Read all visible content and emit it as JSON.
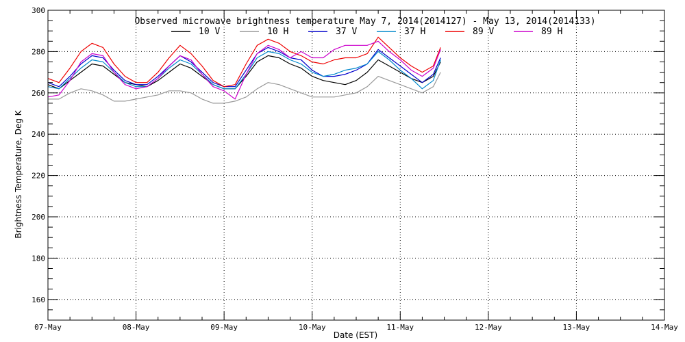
{
  "chart_data": {
    "type": "line",
    "title": "Observed microwave brightness temperature May  7, 2014(2014127) - May 13, 2014(2014133)",
    "xlabel": "Date (EST)",
    "ylabel": "Brightness Temperature, Deg K",
    "xlim": [
      "2014-05-07",
      "2014-05-14"
    ],
    "ylim": [
      150,
      300
    ],
    "x_ticks": [
      "07-May",
      "08-May",
      "09-May",
      "10-May",
      "11-May",
      "12-May",
      "13-May",
      "14-May"
    ],
    "y_ticks": [
      160,
      180,
      200,
      220,
      240,
      260,
      280,
      300
    ],
    "grid": true,
    "legend_position": "top",
    "series": [
      {
        "name": "10 V",
        "color": "#000000",
        "points": [
          [
            "2014-05-07 00:00",
            264
          ],
          [
            "2014-05-07 03:00",
            262
          ],
          [
            "2014-05-07 06:00",
            266
          ],
          [
            "2014-05-07 09:00",
            270
          ],
          [
            "2014-05-07 12:00",
            274
          ],
          [
            "2014-05-07 15:00",
            273
          ],
          [
            "2014-05-07 18:00",
            269
          ],
          [
            "2014-05-07 21:00",
            265
          ],
          [
            "2014-05-08 00:00",
            264
          ],
          [
            "2014-05-08 03:00",
            263
          ],
          [
            "2014-05-08 06:00",
            266
          ],
          [
            "2014-05-08 09:00",
            270
          ],
          [
            "2014-05-08 12:00",
            274
          ],
          [
            "2014-05-08 15:00",
            272
          ],
          [
            "2014-05-08 18:00",
            268
          ],
          [
            "2014-05-08 21:00",
            264
          ],
          [
            "2014-05-09 00:00",
            262
          ],
          [
            "2014-05-09 03:00",
            262
          ],
          [
            "2014-05-09 06:00",
            268
          ],
          [
            "2014-05-09 09:00",
            275
          ],
          [
            "2014-05-09 12:00",
            278
          ],
          [
            "2014-05-09 15:00",
            277
          ],
          [
            "2014-05-09 18:00",
            274
          ],
          [
            "2014-05-09 21:00",
            272
          ],
          [
            "2014-05-10 00:00",
            268
          ],
          [
            "2014-05-10 03:00",
            266
          ],
          [
            "2014-05-10 06:00",
            265
          ],
          [
            "2014-05-10 09:00",
            264
          ],
          [
            "2014-05-10 12:00",
            266
          ],
          [
            "2014-05-10 15:00",
            270
          ],
          [
            "2014-05-10 18:00",
            276
          ],
          [
            "2014-05-10 21:00",
            273
          ],
          [
            "2014-05-11 00:00",
            270
          ],
          [
            "2014-05-11 03:00",
            267
          ],
          [
            "2014-05-11 06:00",
            265
          ],
          [
            "2014-05-11 09:00",
            268
          ],
          [
            "2014-05-11 11:00",
            275
          ]
        ]
      },
      {
        "name": "10 H",
        "color": "#999999",
        "points": [
          [
            "2014-05-07 00:00",
            257
          ],
          [
            "2014-05-07 03:00",
            257
          ],
          [
            "2014-05-07 06:00",
            260
          ],
          [
            "2014-05-07 09:00",
            262
          ],
          [
            "2014-05-07 12:00",
            261
          ],
          [
            "2014-05-07 15:00",
            259
          ],
          [
            "2014-05-07 18:00",
            256
          ],
          [
            "2014-05-07 21:00",
            256
          ],
          [
            "2014-05-08 00:00",
            257
          ],
          [
            "2014-05-08 03:00",
            258
          ],
          [
            "2014-05-08 06:00",
            259
          ],
          [
            "2014-05-08 09:00",
            261
          ],
          [
            "2014-05-08 12:00",
            261
          ],
          [
            "2014-05-08 15:00",
            260
          ],
          [
            "2014-05-08 18:00",
            257
          ],
          [
            "2014-05-08 21:00",
            255
          ],
          [
            "2014-05-09 00:00",
            255
          ],
          [
            "2014-05-09 03:00",
            256
          ],
          [
            "2014-05-09 06:00",
            258
          ],
          [
            "2014-05-09 09:00",
            262
          ],
          [
            "2014-05-09 12:00",
            265
          ],
          [
            "2014-05-09 15:00",
            264
          ],
          [
            "2014-05-09 18:00",
            262
          ],
          [
            "2014-05-09 21:00",
            260
          ],
          [
            "2014-05-10 00:00",
            258
          ],
          [
            "2014-05-10 03:00",
            258
          ],
          [
            "2014-05-10 06:00",
            258
          ],
          [
            "2014-05-10 09:00",
            259
          ],
          [
            "2014-05-10 12:00",
            260
          ],
          [
            "2014-05-10 15:00",
            263
          ],
          [
            "2014-05-10 18:00",
            268
          ],
          [
            "2014-05-10 21:00",
            266
          ],
          [
            "2014-05-11 00:00",
            264
          ],
          [
            "2014-05-11 03:00",
            262
          ],
          [
            "2014-05-11 06:00",
            260
          ],
          [
            "2014-05-11 09:00",
            263
          ],
          [
            "2014-05-11 11:00",
            270
          ]
        ]
      },
      {
        "name": "37 V",
        "color": "#0000cc",
        "points": [
          [
            "2014-05-07 00:00",
            265
          ],
          [
            "2014-05-07 03:00",
            263
          ],
          [
            "2014-05-07 06:00",
            268
          ],
          [
            "2014-05-07 09:00",
            274
          ],
          [
            "2014-05-07 12:00",
            278
          ],
          [
            "2014-05-07 15:00",
            277
          ],
          [
            "2014-05-07 18:00",
            271
          ],
          [
            "2014-05-07 21:00",
            266
          ],
          [
            "2014-05-08 00:00",
            264
          ],
          [
            "2014-05-08 03:00",
            264
          ],
          [
            "2014-05-08 06:00",
            268
          ],
          [
            "2014-05-08 09:00",
            273
          ],
          [
            "2014-05-08 12:00",
            278
          ],
          [
            "2014-05-08 15:00",
            275
          ],
          [
            "2014-05-08 18:00",
            270
          ],
          [
            "2014-05-08 21:00",
            265
          ],
          [
            "2014-05-09 00:00",
            263
          ],
          [
            "2014-05-09 03:00",
            263
          ],
          [
            "2014-05-09 06:00",
            271
          ],
          [
            "2014-05-09 09:00",
            279
          ],
          [
            "2014-05-09 12:00",
            282
          ],
          [
            "2014-05-09 15:00",
            280
          ],
          [
            "2014-05-09 18:00",
            277
          ],
          [
            "2014-05-09 21:00",
            276
          ],
          [
            "2014-05-10 00:00",
            271
          ],
          [
            "2014-05-10 03:00",
            268
          ],
          [
            "2014-05-10 06:00",
            268
          ],
          [
            "2014-05-10 09:00",
            269
          ],
          [
            "2014-05-10 12:00",
            271
          ],
          [
            "2014-05-10 15:00",
            274
          ],
          [
            "2014-05-10 18:00",
            281
          ],
          [
            "2014-05-10 21:00",
            277
          ],
          [
            "2014-05-11 00:00",
            273
          ],
          [
            "2014-05-11 03:00",
            269
          ],
          [
            "2014-05-11 06:00",
            265
          ],
          [
            "2014-05-11 09:00",
            269
          ],
          [
            "2014-05-11 11:00",
            277
          ]
        ]
      },
      {
        "name": "37 H",
        "color": "#0088cc",
        "points": [
          [
            "2014-05-07 00:00",
            263
          ],
          [
            "2014-05-07 03:00",
            262
          ],
          [
            "2014-05-07 06:00",
            267
          ],
          [
            "2014-05-07 09:00",
            272
          ],
          [
            "2014-05-07 12:00",
            276
          ],
          [
            "2014-05-07 15:00",
            275
          ],
          [
            "2014-05-07 18:00",
            270
          ],
          [
            "2014-05-07 21:00",
            265
          ],
          [
            "2014-05-08 00:00",
            263
          ],
          [
            "2014-05-08 03:00",
            263
          ],
          [
            "2014-05-08 06:00",
            267
          ],
          [
            "2014-05-08 09:00",
            272
          ],
          [
            "2014-05-08 12:00",
            276
          ],
          [
            "2014-05-08 15:00",
            274
          ],
          [
            "2014-05-08 18:00",
            269
          ],
          [
            "2014-05-08 21:00",
            264
          ],
          [
            "2014-05-09 00:00",
            262
          ],
          [
            "2014-05-09 03:00",
            262
          ],
          [
            "2014-05-09 06:00",
            269
          ],
          [
            "2014-05-09 09:00",
            277
          ],
          [
            "2014-05-09 12:00",
            280
          ],
          [
            "2014-05-09 15:00",
            279
          ],
          [
            "2014-05-09 18:00",
            276
          ],
          [
            "2014-05-09 21:00",
            274
          ],
          [
            "2014-05-10 00:00",
            270
          ],
          [
            "2014-05-10 03:00",
            268
          ],
          [
            "2014-05-10 06:00",
            269
          ],
          [
            "2014-05-10 09:00",
            271
          ],
          [
            "2014-05-10 12:00",
            272
          ],
          [
            "2014-05-10 15:00",
            274
          ],
          [
            "2014-05-10 18:00",
            280
          ],
          [
            "2014-05-10 21:00",
            276
          ],
          [
            "2014-05-11 00:00",
            271
          ],
          [
            "2014-05-11 03:00",
            267
          ],
          [
            "2014-05-11 06:00",
            262
          ],
          [
            "2014-05-11 09:00",
            266
          ],
          [
            "2014-05-11 11:00",
            276
          ]
        ]
      },
      {
        "name": "89 V",
        "color": "#ee0000",
        "points": [
          [
            "2014-05-07 00:00",
            267
          ],
          [
            "2014-05-07 03:00",
            265
          ],
          [
            "2014-05-07 06:00",
            272
          ],
          [
            "2014-05-07 09:00",
            280
          ],
          [
            "2014-05-07 12:00",
            284
          ],
          [
            "2014-05-07 15:00",
            282
          ],
          [
            "2014-05-07 18:00",
            274
          ],
          [
            "2014-05-07 21:00",
            268
          ],
          [
            "2014-05-08 00:00",
            265
          ],
          [
            "2014-05-08 03:00",
            265
          ],
          [
            "2014-05-08 06:00",
            270
          ],
          [
            "2014-05-08 09:00",
            277
          ],
          [
            "2014-05-08 12:00",
            283
          ],
          [
            "2014-05-08 15:00",
            279
          ],
          [
            "2014-05-08 18:00",
            273
          ],
          [
            "2014-05-08 21:00",
            266
          ],
          [
            "2014-05-09 00:00",
            263
          ],
          [
            "2014-05-09 03:00",
            264
          ],
          [
            "2014-05-09 06:00",
            274
          ],
          [
            "2014-05-09 09:00",
            283
          ],
          [
            "2014-05-09 12:00",
            286
          ],
          [
            "2014-05-09 15:00",
            284
          ],
          [
            "2014-05-09 18:00",
            280
          ],
          [
            "2014-05-09 21:00",
            278
          ],
          [
            "2014-05-10 00:00",
            275
          ],
          [
            "2014-05-10 03:00",
            274
          ],
          [
            "2014-05-10 06:00",
            276
          ],
          [
            "2014-05-10 09:00",
            277
          ],
          [
            "2014-05-10 12:00",
            277
          ],
          [
            "2014-05-10 15:00",
            279
          ],
          [
            "2014-05-10 18:00",
            287
          ],
          [
            "2014-05-10 21:00",
            282
          ],
          [
            "2014-05-11 00:00",
            277
          ],
          [
            "2014-05-11 03:00",
            273
          ],
          [
            "2014-05-11 06:00",
            270
          ],
          [
            "2014-05-11 09:00",
            273
          ],
          [
            "2014-05-11 11:00",
            282
          ]
        ]
      },
      {
        "name": "89 H",
        "color": "#cc00cc",
        "points": [
          [
            "2014-05-07 00:00",
            258
          ],
          [
            "2014-05-07 03:00",
            259
          ],
          [
            "2014-05-07 06:00",
            266
          ],
          [
            "2014-05-07 09:00",
            275
          ],
          [
            "2014-05-07 12:00",
            279
          ],
          [
            "2014-05-07 15:00",
            278
          ],
          [
            "2014-05-07 18:00",
            270
          ],
          [
            "2014-05-07 21:00",
            264
          ],
          [
            "2014-05-08 00:00",
            262
          ],
          [
            "2014-05-08 03:00",
            263
          ],
          [
            "2014-05-08 06:00",
            267
          ],
          [
            "2014-05-08 09:00",
            273
          ],
          [
            "2014-05-08 12:00",
            278
          ],
          [
            "2014-05-08 15:00",
            276
          ],
          [
            "2014-05-08 18:00",
            269
          ],
          [
            "2014-05-08 21:00",
            263
          ],
          [
            "2014-05-09 00:00",
            261
          ],
          [
            "2014-05-09 03:00",
            257
          ],
          [
            "2014-05-09 06:00",
            269
          ],
          [
            "2014-05-09 09:00",
            279
          ],
          [
            "2014-05-09 12:00",
            283
          ],
          [
            "2014-05-09 15:00",
            281
          ],
          [
            "2014-05-09 18:00",
            277
          ],
          [
            "2014-05-09 21:00",
            280
          ],
          [
            "2014-05-10 00:00",
            277
          ],
          [
            "2014-05-10 03:00",
            277
          ],
          [
            "2014-05-10 06:00",
            281
          ],
          [
            "2014-05-10 09:00",
            283
          ],
          [
            "2014-05-10 12:00",
            283
          ],
          [
            "2014-05-10 15:00",
            283
          ],
          [
            "2014-05-10 18:00",
            285
          ],
          [
            "2014-05-10 21:00",
            280
          ],
          [
            "2014-05-11 00:00",
            276
          ],
          [
            "2014-05-11 03:00",
            271
          ],
          [
            "2014-05-11 06:00",
            268
          ],
          [
            "2014-05-11 09:00",
            272
          ],
          [
            "2014-05-11 11:00",
            281
          ]
        ]
      }
    ]
  }
}
